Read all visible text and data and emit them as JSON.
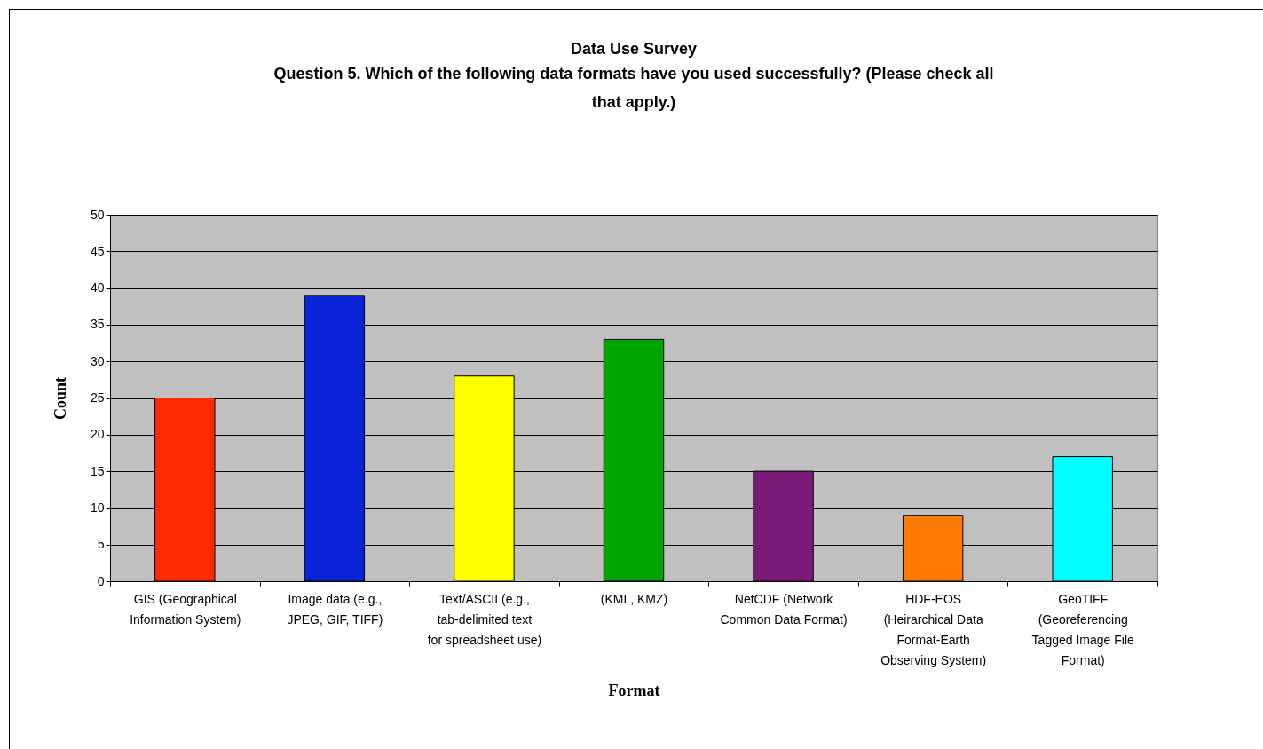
{
  "chart_data": {
    "type": "bar",
    "title": "Data Use Survey",
    "subtitle": "Question 5.  Which of the following data formats have you used successfully?  (Please check all that apply.)",
    "xlabel": "Format",
    "ylabel": "Count",
    "categories": [
      "GIS (Geographical Information System)",
      "Image data (e.g., JPEG, GIF, TIFF)",
      "Text/ASCII (e.g., tab-delimited text for spreadsheet use)",
      "(KML, KMZ)",
      "NetCDF (Network Common Data Format)",
      "HDF-EOS (Heirarchical Data Format-Earth Observing System)",
      "GeoTIFF (Georeferencing Tagged Image File Format)"
    ],
    "values": [
      25,
      39,
      28,
      33,
      15,
      9,
      17
    ],
    "colors": [
      "#ff2a00",
      "#0a22d6",
      "#ffff00",
      "#00a300",
      "#7b1a76",
      "#ff7b00",
      "#00ffff"
    ],
    "ylim": [
      0,
      50
    ],
    "yticks": [
      0,
      5,
      10,
      15,
      20,
      25,
      30,
      35,
      40,
      45,
      50
    ],
    "grid": "y"
  }
}
